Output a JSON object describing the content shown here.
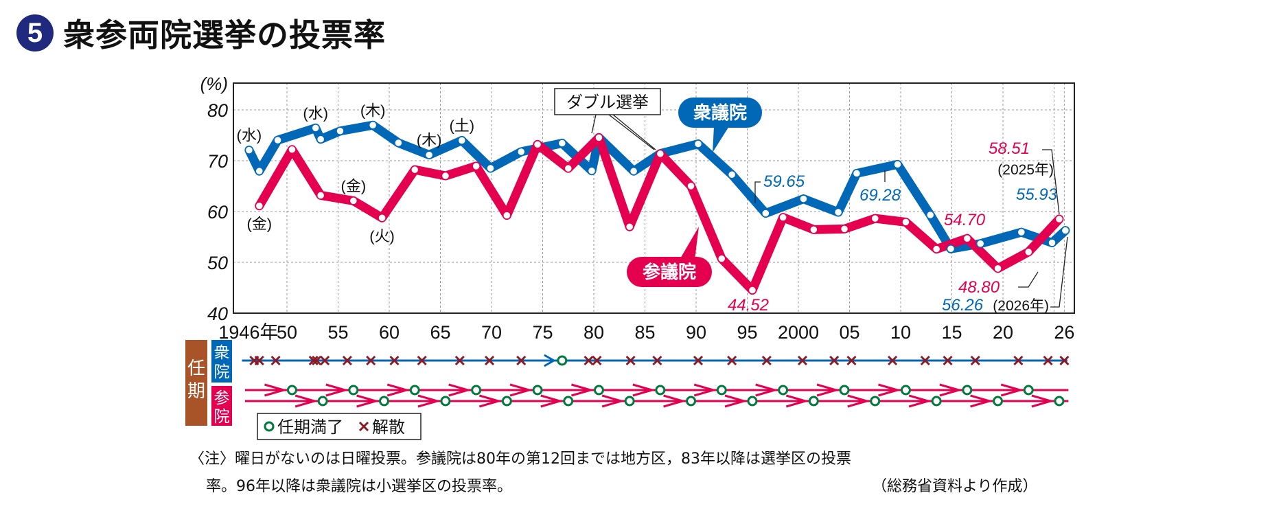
{
  "title": {
    "number": "5",
    "text": "衆参両院選挙の投票率"
  },
  "chart_data": {
    "type": "line",
    "title": "衆参両院選挙の投票率",
    "ylabel": "(%)",
    "xlabel": "",
    "ylim": [
      40,
      80
    ],
    "xlim": [
      1944.8,
      2026.9
    ],
    "grid": true,
    "yticks": [
      {
        "v": 40,
        "label": "40"
      },
      {
        "v": 50,
        "label": "50"
      },
      {
        "v": 60,
        "label": "60"
      },
      {
        "v": 70,
        "label": "70"
      },
      {
        "v": 80,
        "label": "80"
      }
    ],
    "xticks": [
      {
        "year": 1946,
        "label": "1946年"
      },
      {
        "year": 1950,
        "label": "50"
      },
      {
        "year": 1955,
        "label": "55"
      },
      {
        "year": 1960,
        "label": "60"
      },
      {
        "year": 1965,
        "label": "65"
      },
      {
        "year": 1970,
        "label": "70"
      },
      {
        "year": 1975,
        "label": "75"
      },
      {
        "year": 1980,
        "label": "80"
      },
      {
        "year": 1985,
        "label": "85"
      },
      {
        "year": 1990,
        "label": "90"
      },
      {
        "year": 1995,
        "label": "95"
      },
      {
        "year": 2000,
        "label": "2000"
      },
      {
        "year": 2005,
        "label": "05"
      },
      {
        "year": 2010,
        "label": "10"
      },
      {
        "year": 2015,
        "label": "15"
      },
      {
        "year": 2020,
        "label": "20"
      },
      {
        "year": 2026,
        "label": "26"
      }
    ],
    "gridx": [
      1950,
      1955,
      1960,
      1965,
      1970,
      1975,
      1980,
      1985,
      1990,
      1995,
      2000,
      2005,
      2010,
      2015,
      2020,
      2025,
      2026
    ],
    "series": [
      {
        "name": "衆議院",
        "color": "#0068b7",
        "points": [
          {
            "x": 1946.3,
            "y": 72.08
          },
          {
            "x": 1947.3,
            "y": 67.95
          },
          {
            "x": 1949.1,
            "y": 74.04
          },
          {
            "x": 1952.8,
            "y": 76.43
          },
          {
            "x": 1953.3,
            "y": 74.22
          },
          {
            "x": 1955.2,
            "y": 75.84
          },
          {
            "x": 1958.4,
            "y": 76.99
          },
          {
            "x": 1960.9,
            "y": 73.51
          },
          {
            "x": 1963.9,
            "y": 71.14
          },
          {
            "x": 1967.1,
            "y": 73.99
          },
          {
            "x": 1969.9,
            "y": 68.51
          },
          {
            "x": 1972.9,
            "y": 71.76
          },
          {
            "x": 1976.9,
            "y": 73.45
          },
          {
            "x": 1979.8,
            "y": 68.01
          },
          {
            "x": 1980.5,
            "y": 74.57
          },
          {
            "x": 1983.9,
            "y": 67.94
          },
          {
            "x": 1986.5,
            "y": 71.4
          },
          {
            "x": 1990.2,
            "y": 73.31
          },
          {
            "x": 1993.5,
            "y": 67.26
          },
          {
            "x": 1996.8,
            "y": 59.65
          },
          {
            "x": 2000.5,
            "y": 62.49
          },
          {
            "x": 2003.9,
            "y": 59.86
          },
          {
            "x": 2005.7,
            "y": 67.51
          },
          {
            "x": 2009.7,
            "y": 69.28
          },
          {
            "x": 2012.9,
            "y": 59.32
          },
          {
            "x": 2014.9,
            "y": 52.66
          },
          {
            "x": 2017.8,
            "y": 53.68
          },
          {
            "x": 2021.8,
            "y": 55.93
          },
          {
            "x": 2024.8,
            "y": 53.85
          },
          {
            "x": 2026.1,
            "y": 56.26
          }
        ]
      },
      {
        "name": "参議院",
        "color": "#e4004f",
        "points": [
          {
            "x": 1947.3,
            "y": 61.12
          },
          {
            "x": 1950.5,
            "y": 72.19
          },
          {
            "x": 1953.3,
            "y": 63.18
          },
          {
            "x": 1956.5,
            "y": 62.11
          },
          {
            "x": 1959.3,
            "y": 58.75
          },
          {
            "x": 1962.5,
            "y": 68.22
          },
          {
            "x": 1965.5,
            "y": 67.02
          },
          {
            "x": 1968.5,
            "y": 68.94
          },
          {
            "x": 1971.5,
            "y": 59.24
          },
          {
            "x": 1974.5,
            "y": 73.2
          },
          {
            "x": 1977.5,
            "y": 68.49
          },
          {
            "x": 1980.5,
            "y": 74.54
          },
          {
            "x": 1983.5,
            "y": 57.0
          },
          {
            "x": 1986.5,
            "y": 71.36
          },
          {
            "x": 1989.5,
            "y": 65.02
          },
          {
            "x": 1992.5,
            "y": 50.72
          },
          {
            "x": 1995.5,
            "y": 44.52
          },
          {
            "x": 1998.5,
            "y": 58.84
          },
          {
            "x": 2001.5,
            "y": 56.44
          },
          {
            "x": 2004.5,
            "y": 56.57
          },
          {
            "x": 2007.5,
            "y": 58.64
          },
          {
            "x": 2010.5,
            "y": 57.92
          },
          {
            "x": 2013.5,
            "y": 52.61
          },
          {
            "x": 2016.5,
            "y": 54.7
          },
          {
            "x": 2019.5,
            "y": 48.8
          },
          {
            "x": 2022.5,
            "y": 52.05
          },
          {
            "x": 2025.5,
            "y": 58.51
          }
        ]
      }
    ],
    "weekday_labels": [
      {
        "series": 0,
        "index": 0,
        "text": "(水)",
        "pos": "above"
      },
      {
        "series": 0,
        "index": 3,
        "text": "(水)",
        "pos": "above"
      },
      {
        "series": 0,
        "index": 6,
        "text": "(木)",
        "pos": "above"
      },
      {
        "series": 0,
        "index": 8,
        "text": "(木)",
        "pos": "above"
      },
      {
        "series": 0,
        "index": 9,
        "text": "(土)",
        "pos": "above"
      },
      {
        "series": 1,
        "index": 0,
        "text": "(金)",
        "pos": "below"
      },
      {
        "series": 1,
        "index": 3,
        "text": "(金)",
        "pos": "above"
      },
      {
        "series": 1,
        "index": 4,
        "text": "(火)",
        "pos": "below"
      }
    ],
    "value_labels": [
      {
        "text": "59.65",
        "color": "#0068b7"
      },
      {
        "text": "69.28",
        "color": "#0068b7"
      },
      {
        "text": "55.93",
        "color": "#0068b7"
      },
      {
        "text": "56.26",
        "color": "#0068b7"
      },
      {
        "text": "44.52",
        "color": "#e4004f"
      },
      {
        "text": "54.70",
        "color": "#e4004f"
      },
      {
        "text": "48.80",
        "color": "#e4004f"
      },
      {
        "text": "58.51",
        "color": "#e4004f"
      }
    ],
    "annotations": {
      "double_election": "ダブル選挙",
      "year_2025": "(2025年)",
      "year_2026": "(2026年)",
      "legend_shu": "衆議院",
      "legend_san": "参議院"
    }
  },
  "terms": {
    "label": "任期",
    "shu_label": "衆院",
    "san_label": "参院",
    "shu_dissolutions": [
      1946.8,
      1947.3,
      1948.9,
      1952.6,
      1952.9,
      1953.7,
      1955.9,
      1958.2,
      1960.5,
      1963.2,
      1966.9,
      1969.8,
      1972.9,
      1979.5,
      1980.3,
      1983.6,
      1986.2,
      1990.2,
      1993.5,
      1996.9,
      2000.4,
      2003.5,
      2005.2,
      2009.2,
      2012.4,
      2014.6,
      2017.3,
      2021.5,
      2024.4,
      2026.0
    ],
    "shu_expiry": [
      1976.9
    ],
    "san_expiry_upper": [
      1950.5,
      1956.5,
      1962.5,
      1968.5,
      1974.5,
      1980.5,
      1986.5,
      1992.5,
      1998.5,
      2004.5,
      2010.5,
      2016.5,
      2022.5
    ],
    "san_expiry_lower": [
      1953.5,
      1959.5,
      1965.5,
      1971.5,
      1977.5,
      1983.5,
      1989.5,
      1995.5,
      2001.5,
      2007.5,
      2013.5,
      2019.5,
      2025.5
    ],
    "legend_expiry": "任期満了",
    "legend_dissolution": "解散",
    "colors": {
      "label_bg": "#a85428",
      "shu": "#0068b7",
      "san": "#e4004f",
      "expiry": "#007a3d",
      "dissolution": "#8b1a26"
    }
  },
  "notes": {
    "line1": "〈注〉曜日がないのは日曜投票。参議院は80年の第12回までは地方区，83年以降は選挙区の投票",
    "line2": "率。96年以降は衆議院は小選挙区の投票率。",
    "source": "（総務省資料より作成）"
  }
}
